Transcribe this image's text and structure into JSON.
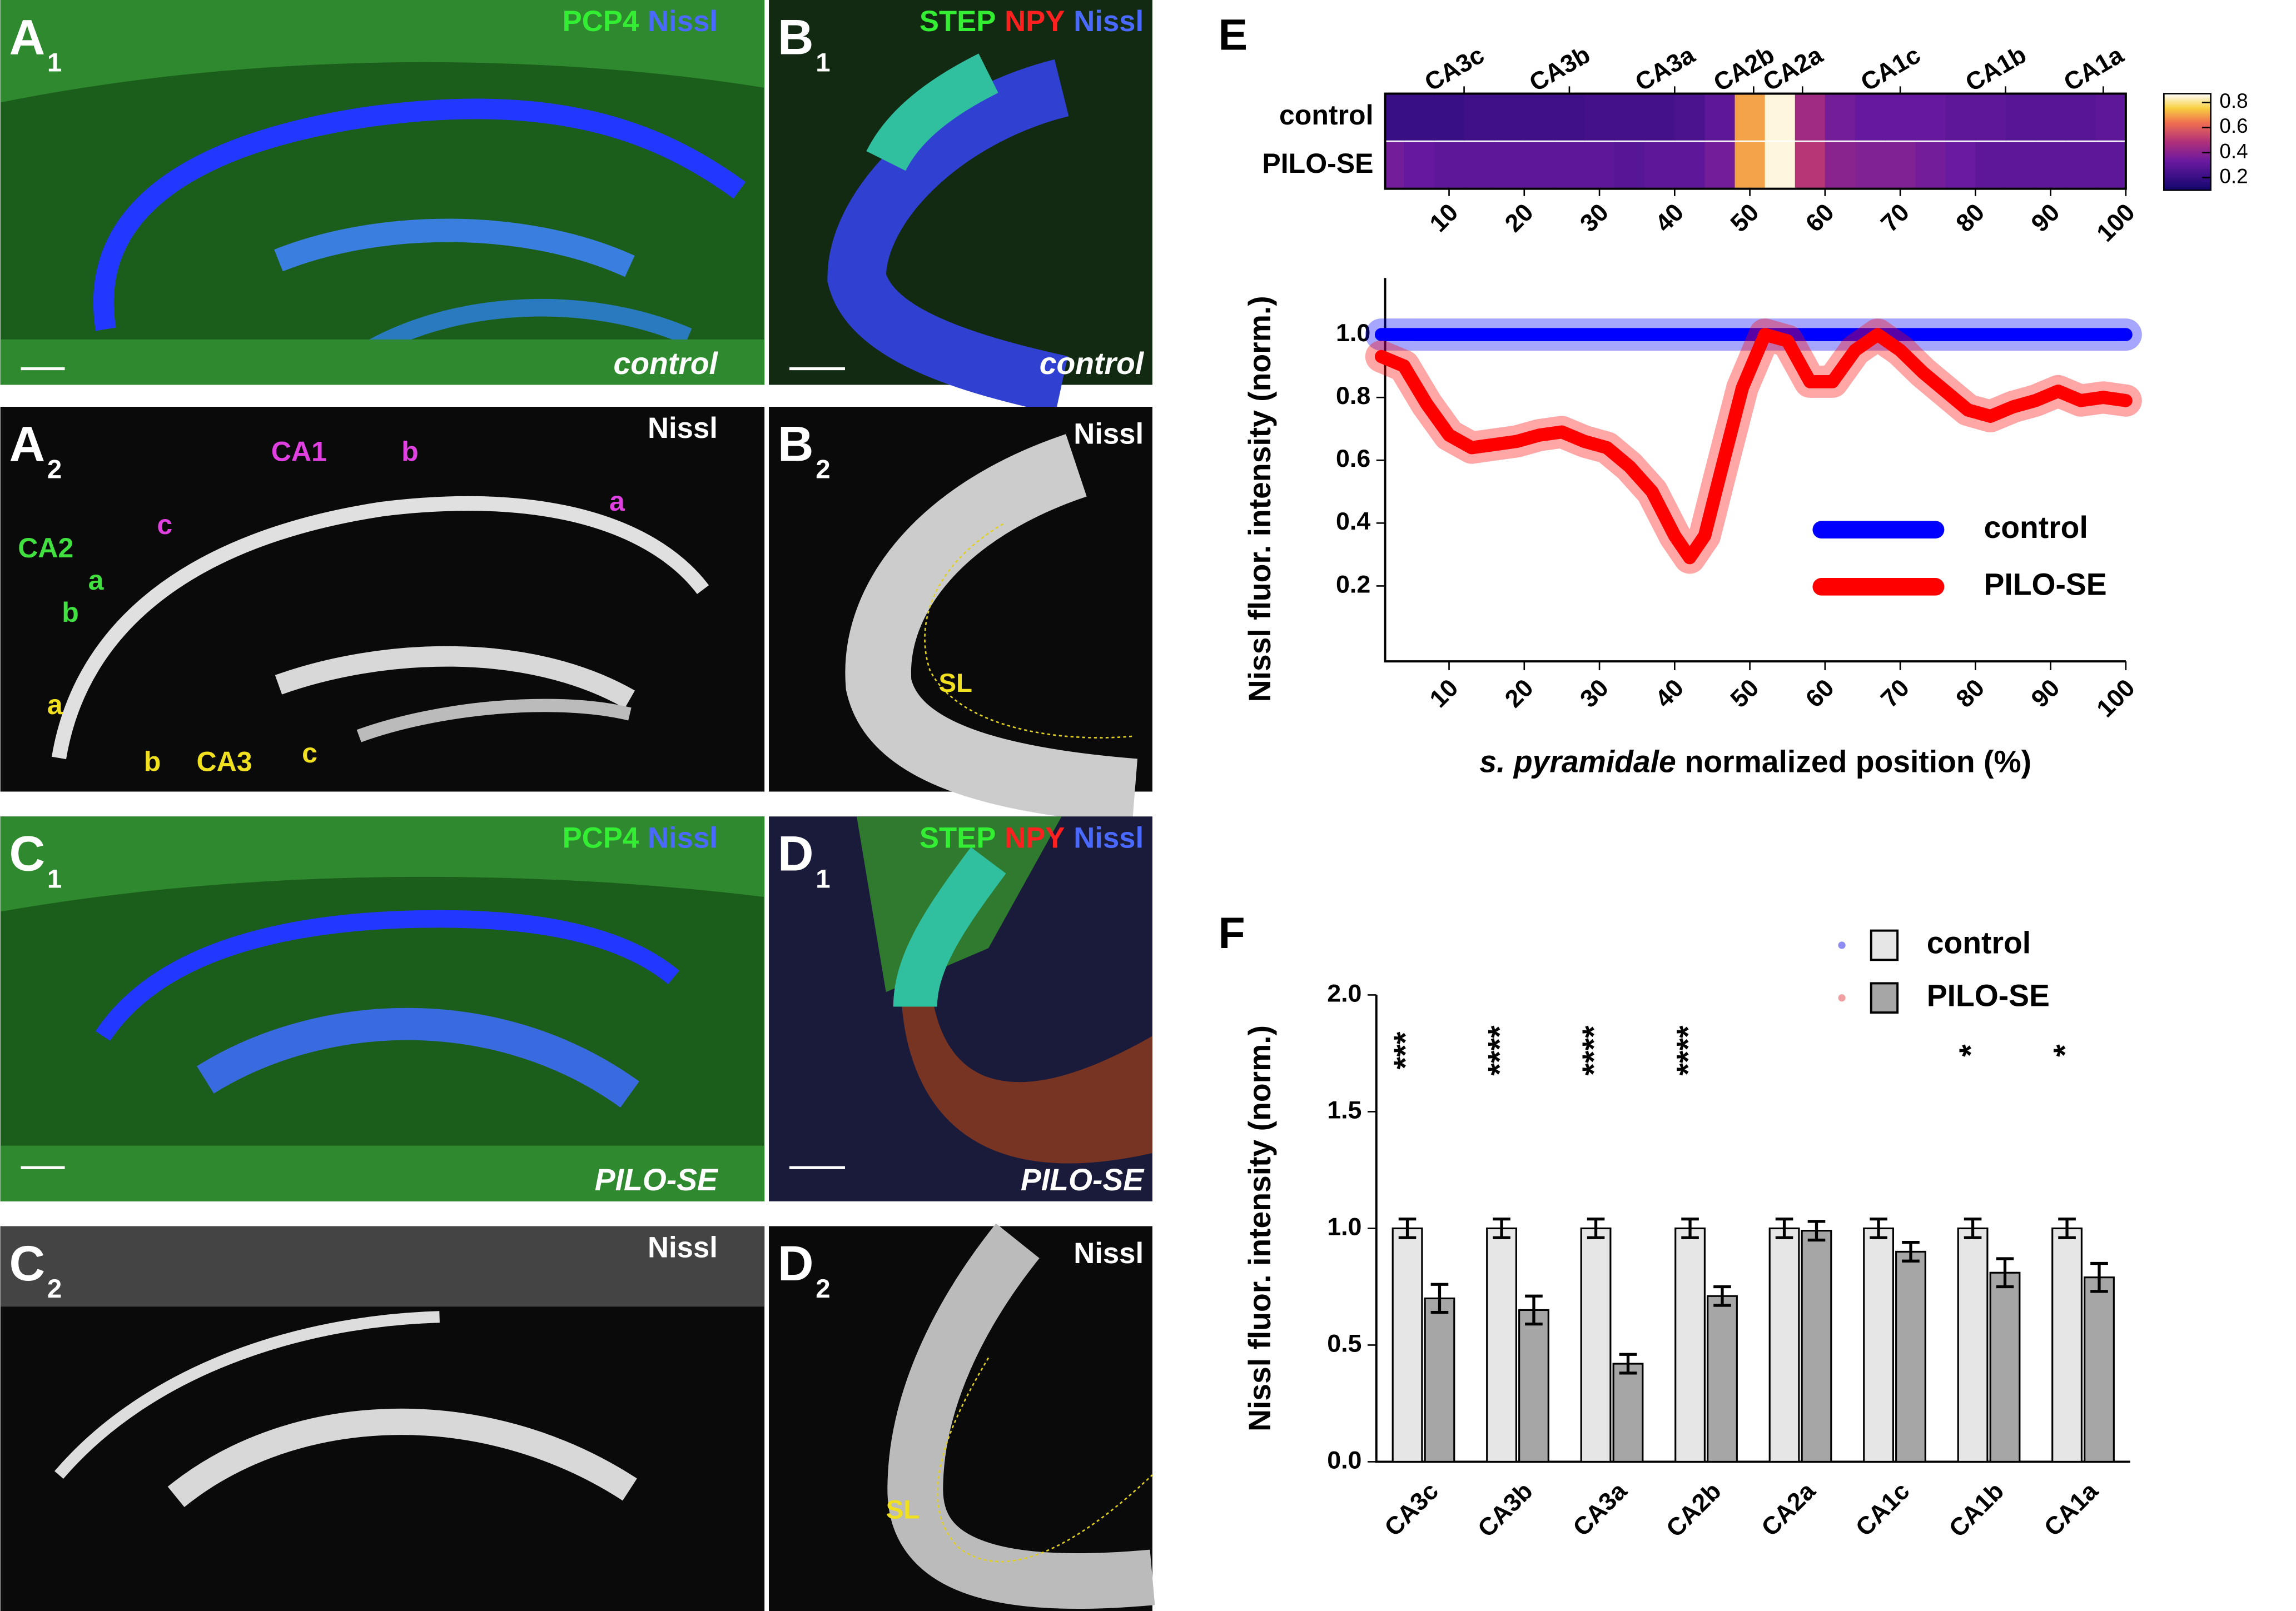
{
  "panels": {
    "A1": {
      "label": "A",
      "sub": "1",
      "channels": [
        "PCP4",
        "Nissl"
      ],
      "condition": "control"
    },
    "A2": {
      "label": "A",
      "sub": "2",
      "channel": "Nissl",
      "regions": [
        "CA1",
        "b",
        "a",
        "c",
        "CA2",
        "a",
        "b",
        "a",
        "b",
        "CA3",
        "c"
      ]
    },
    "B1": {
      "label": "B",
      "sub": "1",
      "channels": [
        "STEP",
        "NPY",
        "Nissl"
      ],
      "condition": "control"
    },
    "B2": {
      "label": "B",
      "sub": "2",
      "channel": "Nissl",
      "regions": [
        "SL"
      ]
    },
    "C1": {
      "label": "C",
      "sub": "1",
      "channels": [
        "PCP4",
        "Nissl"
      ],
      "condition": "PILO-SE"
    },
    "C2": {
      "label": "C",
      "sub": "2",
      "channel": "Nissl"
    },
    "D1": {
      "label": "D",
      "sub": "1",
      "channels": [
        "STEP",
        "NPY",
        "Nissl"
      ],
      "condition": "PILO-SE"
    },
    "D2": {
      "label": "D",
      "sub": "2",
      "channel": "Nissl",
      "regions": [
        "SL"
      ]
    }
  },
  "chart_data": [
    {
      "type": "heatmap",
      "panel": "E",
      "x": [
        2,
        6,
        10,
        14,
        18,
        22,
        26,
        30,
        34,
        38,
        42,
        46,
        50,
        54,
        58,
        62,
        66,
        70,
        74,
        78,
        82,
        86,
        90,
        94,
        98
      ],
      "series": [
        {
          "name": "control",
          "values": [
            0.2,
            0.2,
            0.2,
            0.22,
            0.22,
            0.22,
            0.22,
            0.23,
            0.23,
            0.23,
            0.25,
            0.3,
            0.7,
            0.85,
            0.45,
            0.35,
            0.32,
            0.32,
            0.32,
            0.3,
            0.3,
            0.28,
            0.28,
            0.28,
            0.3
          ]
        },
        {
          "name": "PILO-SE",
          "values": [
            0.35,
            0.32,
            0.3,
            0.3,
            0.3,
            0.3,
            0.3,
            0.3,
            0.28,
            0.3,
            0.3,
            0.35,
            0.7,
            0.85,
            0.5,
            0.4,
            0.38,
            0.38,
            0.35,
            0.33,
            0.3,
            0.3,
            0.3,
            0.3,
            0.3
          ]
        }
      ],
      "top_ticks": [
        {
          "value": 12,
          "label": "CA3c"
        },
        {
          "value": 26,
          "label": "CA3b"
        },
        {
          "value": 40,
          "label": "CA3a"
        },
        {
          "value": 50.5,
          "label": "CA2b"
        },
        {
          "value": 57,
          "label": "CA2a"
        },
        {
          "value": 70,
          "label": "CA1c"
        },
        {
          "value": 84,
          "label": "CA1b"
        },
        {
          "value": 97,
          "label": "CA1a"
        }
      ],
      "xlim": [
        1.5,
        100
      ],
      "xticks": [
        10,
        20,
        30,
        40,
        50,
        60,
        70,
        80,
        90,
        100
      ],
      "clim": [
        0.1,
        0.87
      ],
      "colorbar_ticks": [
        0.2,
        0.4,
        0.6,
        0.8
      ]
    },
    {
      "type": "line",
      "ylabel": "Nissl fluor. intensity (norm.)",
      "xlabel": [
        "s. pyramidale",
        "normalized position (%)"
      ],
      "x": [
        1,
        4,
        7,
        10,
        13,
        16,
        19,
        22,
        25,
        28,
        31,
        34,
        37,
        40,
        42,
        44,
        46,
        49,
        52,
        55,
        58,
        61,
        64,
        67,
        70,
        73,
        76,
        79,
        82,
        85,
        88,
        91,
        94,
        97,
        100
      ],
      "series": [
        {
          "name": "control",
          "color": "#0000ff",
          "values": [
            1,
            1,
            1,
            1,
            1,
            1,
            1,
            1,
            1,
            1,
            1,
            1,
            1,
            1,
            1,
            1,
            1,
            1,
            1,
            1,
            1,
            1,
            1,
            1,
            1,
            1,
            1,
            1,
            1,
            1,
            1,
            1,
            1,
            1,
            1
          ]
        },
        {
          "name": "PILO-SE",
          "color": "#ff0000",
          "values": [
            0.93,
            0.9,
            0.78,
            0.68,
            0.64,
            0.65,
            0.66,
            0.68,
            0.69,
            0.66,
            0.64,
            0.58,
            0.5,
            0.36,
            0.29,
            0.36,
            0.55,
            0.83,
            1.0,
            0.98,
            0.85,
            0.85,
            0.95,
            1.0,
            0.95,
            0.88,
            0.82,
            0.76,
            0.74,
            0.77,
            0.79,
            0.82,
            0.79,
            0.8,
            0.79
          ]
        }
      ],
      "xlim": [
        1.5,
        100
      ],
      "xticks": [
        10,
        20,
        30,
        40,
        50,
        60,
        70,
        80,
        90,
        100
      ],
      "ylim": [
        -0.04,
        1.18
      ],
      "yticks": [
        0.2,
        0.4,
        0.6,
        0.8,
        {
          "value": 1,
          "label": "1.0"
        }
      ],
      "legend": "lower right"
    },
    {
      "type": "bar",
      "panel": "F",
      "ylabel": "Nissl fluor. intensity (norm.)",
      "categories": [
        "CA3c",
        "CA3b",
        "CA3a",
        "CA2b",
        "CA2a",
        "CA1c",
        "CA1b",
        "CA1a"
      ],
      "series": [
        {
          "name": "control",
          "color": "#e6e6e6",
          "dot_color": "#8c8cf0",
          "values": [
            1,
            1,
            1,
            1,
            1,
            1,
            1,
            1
          ],
          "errors": [
            0.04,
            0.04,
            0.04,
            0.04,
            0.04,
            0.04,
            0.04,
            0.04
          ]
        },
        {
          "name": "PILO-SE",
          "color": "#a6a6a6",
          "dot_color": "#f0a0a0",
          "values": [
            0.7,
            0.65,
            0.42,
            0.71,
            0.99,
            0.9,
            0.81,
            0.79
          ],
          "errors": [
            0.06,
            0.06,
            0.04,
            0.04,
            0.04,
            0.04,
            0.06,
            0.06
          ]
        }
      ],
      "significance": [
        "***",
        "****",
        "****",
        "****",
        null,
        null,
        "*",
        "*"
      ],
      "ylim": [
        0,
        2
      ],
      "yticks": [
        {
          "value": 0,
          "label": "0.0"
        },
        {
          "value": 0.5,
          "label": "0.5"
        },
        {
          "value": 1,
          "label": "1.0"
        },
        {
          "value": 1.5,
          "label": "1.5"
        },
        {
          "value": 2,
          "label": "2.0"
        }
      ],
      "legend": "upper right"
    }
  ]
}
